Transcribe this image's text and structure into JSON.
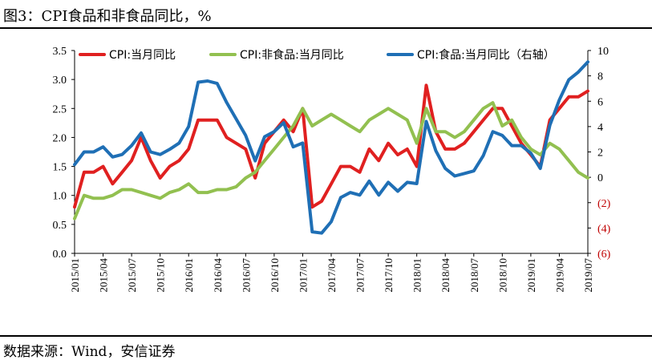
{
  "figure": {
    "title": "图3：CPI食品和非食品同比，%",
    "source": "数据来源：Wind，安信证券"
  },
  "chart_data": {
    "type": "line",
    "x": [
      "2015/01",
      "2015/02",
      "2015/03",
      "2015/04",
      "2015/05",
      "2015/06",
      "2015/07",
      "2015/08",
      "2015/09",
      "2015/10",
      "2015/11",
      "2015/12",
      "2016/01",
      "2016/02",
      "2016/03",
      "2016/04",
      "2016/05",
      "2016/06",
      "2016/07",
      "2016/08",
      "2016/09",
      "2016/10",
      "2016/11",
      "2016/12",
      "2017/01",
      "2017/02",
      "2017/03",
      "2017/04",
      "2017/05",
      "2017/06",
      "2017/07",
      "2017/08",
      "2017/09",
      "2017/10",
      "2017/11",
      "2017/12",
      "2018/01",
      "2018/02",
      "2018/03",
      "2018/04",
      "2018/05",
      "2018/06",
      "2018/07",
      "2018/08",
      "2018/09",
      "2018/10",
      "2018/11",
      "2018/12",
      "2019/01",
      "2019/02",
      "2019/03",
      "2019/04",
      "2019/05",
      "2019/06",
      "2019/07"
    ],
    "x_tick_labels": [
      "2015/01",
      "2015/04",
      "2015/07",
      "2015/10",
      "2016/01",
      "2016/04",
      "2016/07",
      "2016/10",
      "2017/01",
      "2017/04",
      "2017/07",
      "2017/10",
      "2018/01",
      "2018/04",
      "2018/07",
      "2018/10",
      "2019/01",
      "2019/04",
      "2019/07"
    ],
    "left_axis": {
      "ylim": [
        0.0,
        3.5
      ],
      "ticks": [
        "0.0",
        "0.5",
        "1.0",
        "1.5",
        "2.0",
        "2.5",
        "3.0",
        "3.5"
      ]
    },
    "right_axis": {
      "ylim": [
        -6,
        10
      ],
      "ticks": [
        {
          "label": "10",
          "color": "#000000"
        },
        {
          "label": "8",
          "color": "#000000"
        },
        {
          "label": "6",
          "color": "#000000"
        },
        {
          "label": "4",
          "color": "#000000"
        },
        {
          "label": "2",
          "color": "#000000"
        },
        {
          "label": "0",
          "color": "#000000"
        },
        {
          "label": "(2)",
          "color": "#c00000"
        },
        {
          "label": "(4)",
          "color": "#c00000"
        },
        {
          "label": "(6)",
          "color": "#c00000"
        }
      ]
    },
    "series": [
      {
        "name": "CPI:当月同比",
        "color": "#e02020",
        "axis": "left",
        "values": [
          0.8,
          1.4,
          1.4,
          1.5,
          1.2,
          1.4,
          1.6,
          2.0,
          1.6,
          1.3,
          1.5,
          1.6,
          1.8,
          2.3,
          2.3,
          2.3,
          2.0,
          1.9,
          1.8,
          1.3,
          1.9,
          2.1,
          2.3,
          2.1,
          2.5,
          0.8,
          0.9,
          1.2,
          1.5,
          1.5,
          1.4,
          1.8,
          1.6,
          1.9,
          1.7,
          1.8,
          1.5,
          2.9,
          2.1,
          1.8,
          1.8,
          1.9,
          2.1,
          2.3,
          2.5,
          2.5,
          2.2,
          1.9,
          1.7,
          1.5,
          2.3,
          2.5,
          2.7,
          2.7,
          2.8
        ]
      },
      {
        "name": "CPI:非食品:当月同比",
        "color": "#92c050",
        "axis": "left",
        "values": [
          0.6,
          1.0,
          0.95,
          0.95,
          1.0,
          1.1,
          1.1,
          1.05,
          1.0,
          0.95,
          1.05,
          1.1,
          1.2,
          1.05,
          1.05,
          1.1,
          1.1,
          1.15,
          1.3,
          1.4,
          1.6,
          1.8,
          2.0,
          2.2,
          2.5,
          2.2,
          2.3,
          2.4,
          2.3,
          2.2,
          2.1,
          2.3,
          2.4,
          2.5,
          2.4,
          2.3,
          1.9,
          2.5,
          2.1,
          2.1,
          2.0,
          2.1,
          2.3,
          2.5,
          2.6,
          2.2,
          2.3,
          2.0,
          1.8,
          1.7,
          1.9,
          1.8,
          1.6,
          1.4,
          1.3
        ]
      },
      {
        "name": "CPI:食品:当月同比（右轴）",
        "color": "#1f6fb5",
        "axis": "right",
        "values": [
          1.0,
          2.0,
          2.0,
          2.4,
          1.6,
          1.8,
          2.5,
          3.5,
          2.0,
          1.8,
          2.2,
          2.7,
          4.0,
          7.5,
          7.6,
          7.4,
          5.9,
          4.6,
          3.3,
          1.3,
          3.2,
          3.6,
          4.3,
          2.4,
          2.7,
          -4.3,
          -4.4,
          -3.5,
          -1.6,
          -1.2,
          -1.4,
          -0.3,
          -1.4,
          -0.4,
          -1.1,
          -0.4,
          -0.5,
          4.4,
          2.1,
          0.7,
          0.1,
          0.3,
          0.5,
          1.7,
          3.6,
          3.3,
          2.5,
          2.5,
          1.9,
          0.7,
          4.1,
          6.1,
          7.7,
          8.3,
          9.1
        ]
      }
    ]
  }
}
